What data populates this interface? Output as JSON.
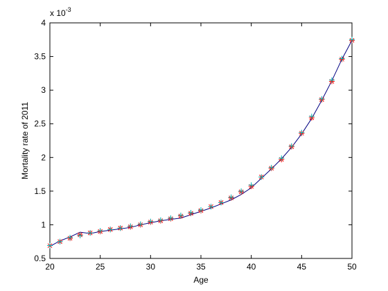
{
  "chart_data": {
    "type": "line",
    "xlabel": "Age",
    "ylabel": "Mortality rate of 2011",
    "y_multiplier": {
      "base": "x 10",
      "exponent": "-3"
    },
    "x": [
      20,
      21,
      22,
      23,
      24,
      25,
      26,
      27,
      28,
      29,
      30,
      31,
      32,
      33,
      34,
      35,
      36,
      37,
      38,
      39,
      40,
      41,
      42,
      43,
      44,
      45,
      46,
      47,
      48,
      49,
      50
    ],
    "series": [
      {
        "color": "#000080",
        "marker": "none",
        "values": [
          0.68,
          0.76,
          0.82,
          0.89,
          0.87,
          0.9,
          0.92,
          0.94,
          0.96,
          1.0,
          1.03,
          1.06,
          1.08,
          1.1,
          1.15,
          1.2,
          1.25,
          1.31,
          1.37,
          1.45,
          1.55,
          1.69,
          1.83,
          1.98,
          2.15,
          2.35,
          2.58,
          2.85,
          3.14,
          3.46,
          3.74
        ]
      },
      {
        "color": "#ff0000",
        "marker": "*",
        "values": [
          0.69,
          0.75,
          0.8,
          0.85,
          0.88,
          0.9,
          0.93,
          0.95,
          0.97,
          1.0,
          1.04,
          1.06,
          1.09,
          1.13,
          1.17,
          1.21,
          1.27,
          1.33,
          1.4,
          1.49,
          1.57,
          1.71,
          1.84,
          1.97,
          2.16,
          2.36,
          2.59,
          2.86,
          3.13,
          3.46,
          3.74
        ]
      },
      {
        "color": "#00bfbf",
        "marker": "+",
        "values": [
          0.69,
          0.75,
          0.81,
          0.84,
          0.88,
          0.91,
          0.93,
          0.95,
          0.98,
          1.01,
          1.05,
          1.07,
          1.1,
          1.14,
          1.18,
          1.22,
          1.27,
          1.33,
          1.41,
          1.5,
          1.59,
          1.71,
          1.85,
          1.99,
          2.17,
          2.37,
          2.61,
          2.87,
          3.15,
          3.47,
          3.75
        ]
      }
    ],
    "xlim": [
      20,
      50
    ],
    "xticks": [
      20,
      25,
      30,
      35,
      40,
      45,
      50
    ],
    "ylim": [
      0.5,
      4
    ],
    "yticks": [
      0.5,
      1,
      1.5,
      2,
      2.5,
      3,
      3.5,
      4
    ]
  }
}
